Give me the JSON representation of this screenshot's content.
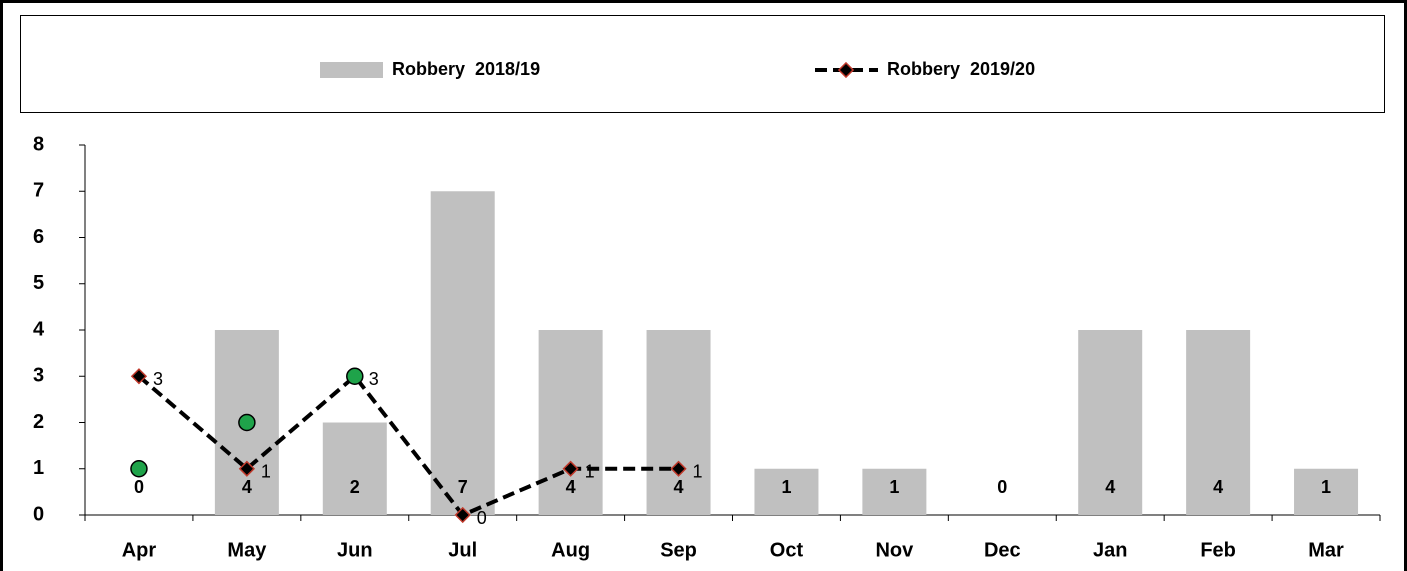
{
  "chart_data": {
    "type": "bar",
    "categories": [
      "Apr",
      "May",
      "Jun",
      "Jul",
      "Aug",
      "Sep",
      "Oct",
      "Nov",
      "Dec",
      "Jan",
      "Feb",
      "Mar"
    ],
    "series": [
      {
        "name": "Robbery  2018/19",
        "type": "bar",
        "color": "#c0c0c0",
        "values": [
          0,
          4,
          2,
          7,
          4,
          4,
          1,
          1,
          0,
          4,
          4,
          1
        ]
      },
      {
        "name": "Robbery  2019/20",
        "type": "line",
        "color": "#000000",
        "marker_edge": "#c0392b",
        "values": [
          3,
          1,
          3,
          0,
          1,
          1,
          null,
          null,
          null,
          null,
          null,
          null
        ]
      },
      {
        "type": "scatter",
        "color": "#1fa34a",
        "values": [
          1,
          2,
          3,
          null,
          null,
          null,
          null,
          null,
          null,
          null,
          null,
          null
        ]
      }
    ],
    "ylim": [
      0,
      8
    ],
    "yticks": [
      0,
      1,
      2,
      3,
      4,
      5,
      6,
      7,
      8
    ]
  }
}
